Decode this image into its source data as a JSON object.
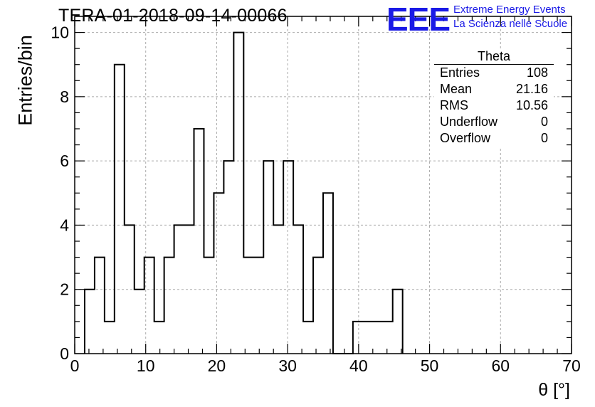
{
  "header": {
    "run_title": "TERA-01-2018-09-14-00066",
    "logo_text": "EEE",
    "tagline_1": "Extreme Energy Events",
    "tagline_2": "La Scienza nelle Scuole"
  },
  "stats": {
    "title": "Theta",
    "rows": [
      {
        "label": "Entries",
        "value": "108"
      },
      {
        "label": "Mean",
        "value": "21.16"
      },
      {
        "label": "RMS",
        "value": "10.56"
      },
      {
        "label": "Underflow",
        "value": "0"
      },
      {
        "label": "Overflow",
        "value": "0"
      }
    ]
  },
  "colors": {
    "brand": "#1a1ae6",
    "line": "#000000",
    "grid": "#aaaaaa"
  },
  "chart_data": {
    "type": "bar",
    "style": "step-histogram",
    "title": "TERA-01-2018-09-14-00066",
    "xlabel": "θ [°]",
    "ylabel": "Entries/bin",
    "xlim": [
      0,
      70
    ],
    "ylim": [
      0,
      10.5
    ],
    "grid": true,
    "bin_width": 1.4,
    "x_ticks": [
      0,
      10,
      20,
      30,
      40,
      50,
      60,
      70
    ],
    "y_ticks": [
      0,
      2,
      4,
      6,
      8,
      10
    ],
    "bin_edges": [
      1.4,
      2.8,
      4.2,
      5.6,
      7.0,
      8.4,
      9.8,
      11.2,
      12.6,
      14.0,
      15.4,
      16.8,
      18.2,
      19.6,
      21.0,
      22.4,
      23.8,
      25.2,
      26.6,
      28.0,
      29.4,
      30.8,
      32.2,
      33.6,
      35.0,
      36.4,
      37.8,
      39.2,
      40.6,
      42.0,
      43.4,
      44.8,
      46.2
    ],
    "values": [
      2,
      3,
      1,
      9,
      4,
      2,
      3,
      1,
      3,
      4,
      4,
      7,
      3,
      5,
      6,
      10,
      3,
      3,
      6,
      4,
      6,
      4,
      1,
      3,
      5,
      0,
      0,
      1,
      1,
      1,
      1,
      2
    ]
  }
}
